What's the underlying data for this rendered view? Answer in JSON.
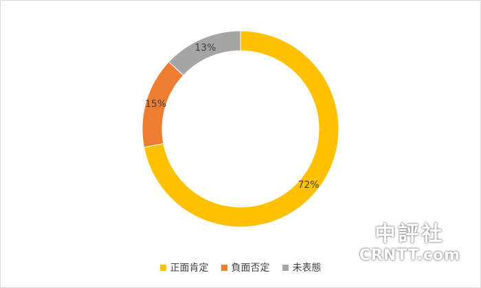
{
  "chart_data": {
    "type": "pie",
    "variant": "donut",
    "categories": [
      "正面肯定",
      "負面否定",
      "未表態"
    ],
    "values": [
      72,
      15,
      13
    ],
    "labels": [
      "72%",
      "15%",
      "13%"
    ],
    "colors": [
      "#ffc000",
      "#ed7d31",
      "#a5a5a5"
    ],
    "legend_position": "bottom"
  },
  "watermark": {
    "line1": "中評社",
    "line2": "CRNTT.com"
  }
}
